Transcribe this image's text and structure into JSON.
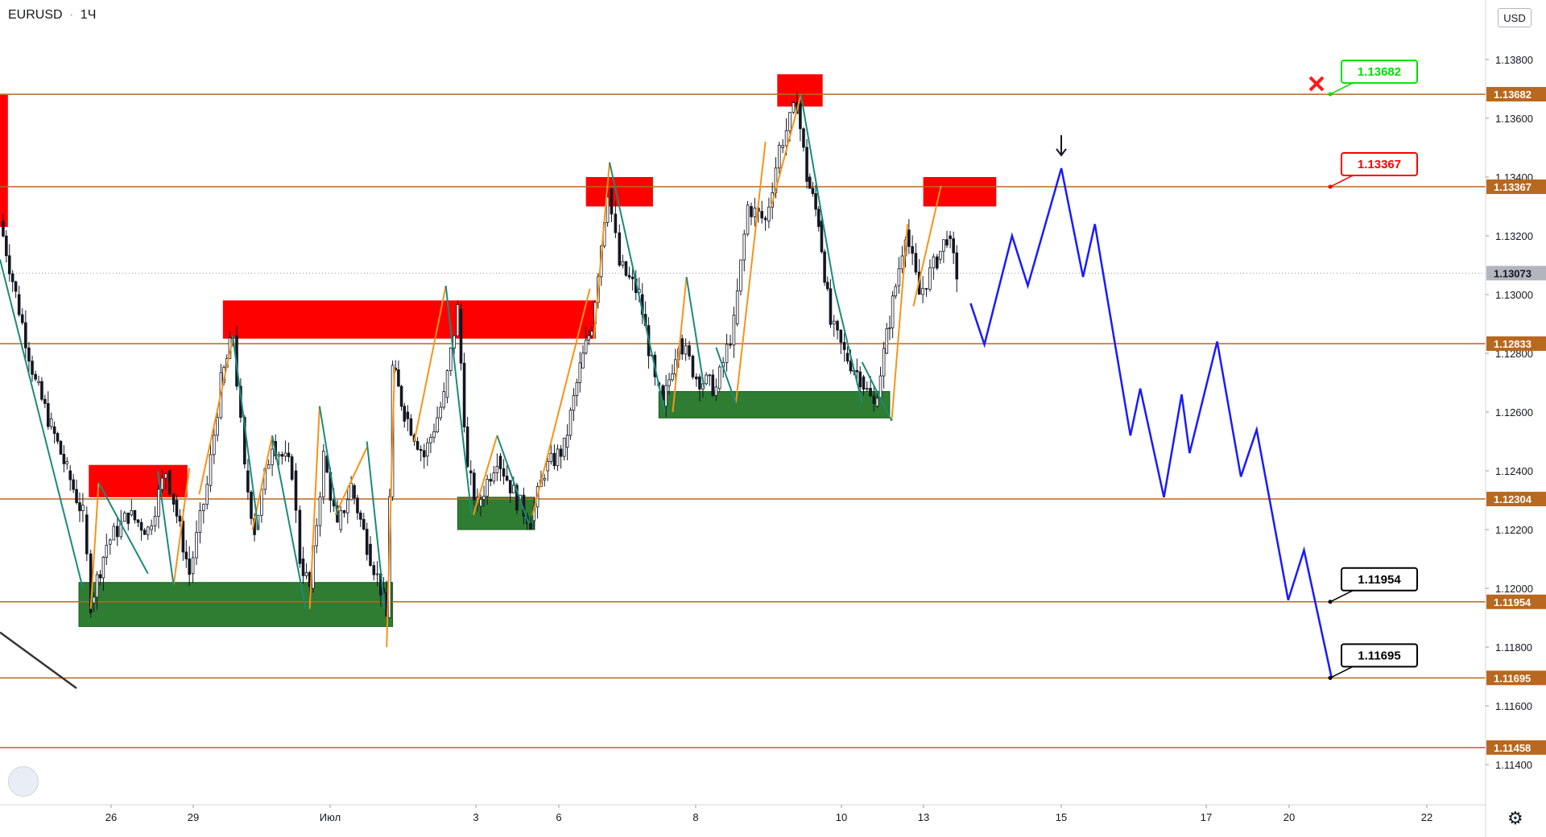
{
  "header": {
    "symbol": "EURUSD",
    "separator": "·",
    "interval": "1Ч",
    "currency": "USD"
  },
  "chart_data": {
    "type": "line",
    "title": "EURUSD · 1Ч",
    "ylim": [
      1.1133,
      1.1408
    ],
    "y_ticks": [
      "1.11400",
      "1.11600",
      "1.11800",
      "1.12000",
      "1.12200",
      "1.12400",
      "1.12600",
      "1.12800",
      "1.13000",
      "1.13200",
      "1.13400",
      "1.13600",
      "1.13800"
    ],
    "x_ticks": [
      "26",
      "29",
      "Июл",
      "3",
      "6",
      "8",
      "10",
      "13",
      "15",
      "17",
      "20",
      "22"
    ],
    "current_price": "1.13073",
    "levels": [
      {
        "value": 1.13682,
        "label": "1.13682"
      },
      {
        "value": 1.13367,
        "label": "1.13367"
      },
      {
        "value": 1.12833,
        "label": "1.12833"
      },
      {
        "value": 1.12304,
        "label": "1.12304"
      },
      {
        "value": 1.11954,
        "label": "1.11954"
      },
      {
        "value": 1.11695,
        "label": "1.11695"
      },
      {
        "value": 1.11458,
        "label": "1.11458"
      }
    ],
    "targets": [
      {
        "label": "1.13682",
        "value": 1.13682,
        "color": "#00e000"
      },
      {
        "label": "1.13367",
        "value": 1.13367,
        "color": "#ff0000"
      },
      {
        "label": "1.11954",
        "value": 1.11954,
        "color": "#000000"
      },
      {
        "label": "1.11695",
        "value": 1.11695,
        "color": "#000000"
      }
    ],
    "supply_zones": [
      {
        "x": [
          0,
          0.4
        ],
        "y": [
          1.1323,
          1.1368
        ]
      },
      {
        "x": [
          4.5,
          9.5
        ],
        "y": [
          1.1231,
          1.1242
        ]
      },
      {
        "x": [
          11.3,
          30.2
        ],
        "y": [
          1.1285,
          1.1298
        ]
      },
      {
        "x": [
          29.7,
          33.1
        ],
        "y": [
          1.133,
          1.134
        ]
      },
      {
        "x": [
          39.4,
          41.7
        ],
        "y": [
          1.1364,
          1.1375
        ]
      },
      {
        "x": [
          46.8,
          50.5
        ],
        "y": [
          1.133,
          1.134
        ]
      }
    ],
    "demand_zones": [
      {
        "x": [
          4.0,
          19.9
        ],
        "y": [
          1.1187,
          1.1202
        ]
      },
      {
        "x": [
          23.2,
          27.1
        ],
        "y": [
          1.122,
          1.1231
        ]
      },
      {
        "x": [
          33.4,
          45.1
        ],
        "y": [
          1.1258,
          1.1267
        ]
      }
    ],
    "candles_anchor": [
      [
        0.0,
        1.1325
      ],
      [
        0.8,
        1.13
      ],
      [
        1.8,
        1.127
      ],
      [
        2.6,
        1.1255
      ],
      [
        3.4,
        1.124
      ],
      [
        4.2,
        1.1225
      ],
      [
        4.6,
        1.1195
      ],
      [
        5.4,
        1.1215
      ],
      [
        6.5,
        1.1225
      ],
      [
        7.5,
        1.122
      ],
      [
        8.4,
        1.124
      ],
      [
        8.8,
        1.123
      ],
      [
        9.6,
        1.1205
      ],
      [
        10.5,
        1.1235
      ],
      [
        11.2,
        1.127
      ],
      [
        11.8,
        1.1286
      ],
      [
        12.4,
        1.124
      ],
      [
        12.9,
        1.122
      ],
      [
        13.8,
        1.125
      ],
      [
        14.8,
        1.124
      ],
      [
        15.2,
        1.121
      ],
      [
        15.7,
        1.12
      ],
      [
        16.4,
        1.1245
      ],
      [
        17.1,
        1.122
      ],
      [
        17.8,
        1.1235
      ],
      [
        18.6,
        1.1215
      ],
      [
        19.3,
        1.12
      ],
      [
        19.6,
        1.119
      ],
      [
        19.9,
        1.1275
      ],
      [
        20.5,
        1.126
      ],
      [
        21.5,
        1.1245
      ],
      [
        22.5,
        1.1265
      ],
      [
        23.2,
        1.1295
      ],
      [
        23.7,
        1.124
      ],
      [
        24.2,
        1.1228
      ],
      [
        25.2,
        1.1245
      ],
      [
        26.2,
        1.123
      ],
      [
        26.9,
        1.1223
      ],
      [
        27.6,
        1.124
      ],
      [
        28.6,
        1.1248
      ],
      [
        29.4,
        1.1275
      ],
      [
        30.0,
        1.129
      ],
      [
        30.8,
        1.1336
      ],
      [
        31.4,
        1.131
      ],
      [
        32.4,
        1.13
      ],
      [
        33.2,
        1.127
      ],
      [
        33.6,
        1.1262
      ],
      [
        34.4,
        1.1285
      ],
      [
        35.3,
        1.1272
      ],
      [
        36.3,
        1.1268
      ],
      [
        37.2,
        1.129
      ],
      [
        37.9,
        1.133
      ],
      [
        38.8,
        1.1325
      ],
      [
        39.5,
        1.135
      ],
      [
        40.4,
        1.1365
      ],
      [
        40.9,
        1.134
      ],
      [
        41.5,
        1.1325
      ],
      [
        42.1,
        1.129
      ],
      [
        42.8,
        1.128
      ],
      [
        43.6,
        1.1272
      ],
      [
        44.3,
        1.1262
      ],
      [
        44.8,
        1.128
      ],
      [
        45.4,
        1.1303
      ],
      [
        45.9,
        1.1322
      ],
      [
        46.6,
        1.13
      ],
      [
        47.5,
        1.1312
      ],
      [
        48.0,
        1.132
      ],
      [
        48.5,
        1.1307
      ]
    ],
    "zigzag_up": [
      [
        [
          4.6,
          1.1193
        ],
        [
          5.0,
          1.1236
        ]
      ],
      [
        [
          8.8,
          1.1201
        ],
        [
          9.6,
          1.1241
        ]
      ],
      [
        [
          10.1,
          1.1232
        ],
        [
          11.8,
          1.1285
        ]
      ],
      [
        [
          12.8,
          1.122
        ],
        [
          13.8,
          1.1252
        ]
      ],
      [
        [
          15.7,
          1.1193
        ],
        [
          16.2,
          1.1262
        ]
      ],
      [
        [
          17.0,
          1.1225
        ],
        [
          18.6,
          1.1248
        ]
      ],
      [
        [
          19.6,
          1.118
        ],
        [
          20.0,
          1.1275
        ]
      ],
      [
        [
          21.0,
          1.125
        ],
        [
          22.6,
          1.1303
        ]
      ],
      [
        [
          24.0,
          1.1225
        ],
        [
          25.2,
          1.1252
        ]
      ],
      [
        [
          27.0,
          1.1225
        ],
        [
          29.9,
          1.1302
        ]
      ],
      [
        [
          30.1,
          1.1285
        ],
        [
          30.9,
          1.1345
        ]
      ],
      [
        [
          34.1,
          1.126
        ],
        [
          34.8,
          1.1306
        ]
      ],
      [
        [
          37.3,
          1.1263
        ],
        [
          38.8,
          1.1352
        ]
      ],
      [
        [
          39.1,
          1.133
        ],
        [
          40.6,
          1.1368
        ]
      ],
      [
        [
          45.2,
          1.1257
        ],
        [
          46.0,
          1.1324
        ]
      ],
      [
        [
          46.3,
          1.1296
        ],
        [
          47.7,
          1.1337
        ]
      ]
    ],
    "zigzag_down": [
      [
        [
          0.0,
          1.1312
        ],
        [
          4.2,
          1.12
        ]
      ],
      [
        [
          5.0,
          1.1236
        ],
        [
          7.5,
          1.1205
        ]
      ],
      [
        [
          8.0,
          1.124
        ],
        [
          8.8,
          1.1201
        ]
      ],
      [
        [
          11.8,
          1.1286
        ],
        [
          13.1,
          1.122
        ]
      ],
      [
        [
          13.8,
          1.1252
        ],
        [
          15.5,
          1.1193
        ]
      ],
      [
        [
          16.2,
          1.1262
        ],
        [
          17.1,
          1.1225
        ]
      ],
      [
        [
          18.6,
          1.125
        ],
        [
          19.5,
          1.1193
        ]
      ],
      [
        [
          22.6,
          1.1303
        ],
        [
          23.9,
          1.1225
        ]
      ],
      [
        [
          25.2,
          1.1252
        ],
        [
          26.8,
          1.1222
        ]
      ],
      [
        [
          30.9,
          1.1345
        ],
        [
          33.7,
          1.126
        ]
      ],
      [
        [
          34.8,
          1.1306
        ],
        [
          35.7,
          1.1268
        ]
      ],
      [
        [
          36.3,
          1.1282
        ],
        [
          37.3,
          1.1263
        ]
      ],
      [
        [
          40.6,
          1.1368
        ],
        [
          42.3,
          1.1302
        ]
      ],
      [
        [
          42.3,
          1.1302
        ],
        [
          43.7,
          1.1263
        ]
      ],
      [
        [
          43.7,
          1.1277
        ],
        [
          45.2,
          1.1257
        ]
      ]
    ],
    "forecast": [
      [
        49.2,
        1.1297
      ],
      [
        49.9,
        1.1283
      ],
      [
        51.3,
        1.132
      ],
      [
        52.1,
        1.1303
      ],
      [
        53.8,
        1.1343
      ],
      [
        54.9,
        1.1306
      ],
      [
        55.5,
        1.1324
      ],
      [
        57.3,
        1.1252
      ],
      [
        57.8,
        1.1268
      ],
      [
        59.0,
        1.1231
      ],
      [
        59.9,
        1.1266
      ],
      [
        60.3,
        1.1246
      ],
      [
        61.7,
        1.1284
      ],
      [
        62.9,
        1.1238
      ],
      [
        63.7,
        1.1254
      ],
      [
        65.3,
        1.1196
      ],
      [
        66.1,
        1.1213
      ],
      [
        67.5,
        1.11695
      ]
    ]
  }
}
